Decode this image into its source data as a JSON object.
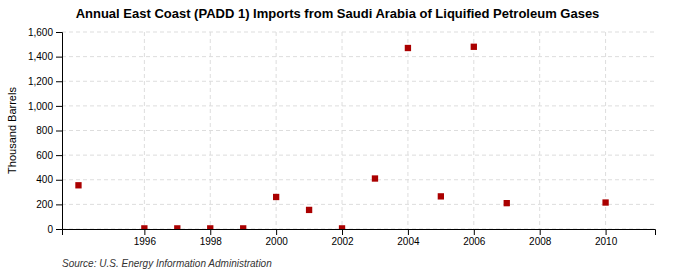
{
  "chart_data": {
    "type": "scatter",
    "title": "Annual East Coast (PADD 1) Imports from Saudi Arabia of Liquified Petroleum Gases",
    "ylabel": "Thousand Barrels",
    "annotations": [
      "Source: U.S. Energy Information Administration"
    ],
    "x": [
      1994,
      1996,
      1997,
      1998,
      1999,
      2000,
      2001,
      2002,
      2003,
      2004,
      2005,
      2006,
      2007,
      2010
    ],
    "values": [
      355,
      5,
      5,
      5,
      5,
      260,
      155,
      5,
      410,
      1470,
      265,
      1480,
      210,
      215
    ],
    "color": "#aa0000",
    "marker": "square",
    "xlim": [
      1993.5,
      2011.5
    ],
    "ylim": [
      0,
      1600
    ],
    "xticks": [
      1996,
      1998,
      2000,
      2002,
      2004,
      2006,
      2008,
      2010
    ],
    "yticks": [
      0,
      200,
      400,
      600,
      800,
      {
        "value": 1000,
        "label": "1,000"
      },
      {
        "value": 1200,
        "label": "1,200"
      },
      {
        "value": 1400,
        "label": "1,400"
      },
      {
        "value": 1600,
        "label": "1,600"
      }
    ],
    "grid": true
  }
}
